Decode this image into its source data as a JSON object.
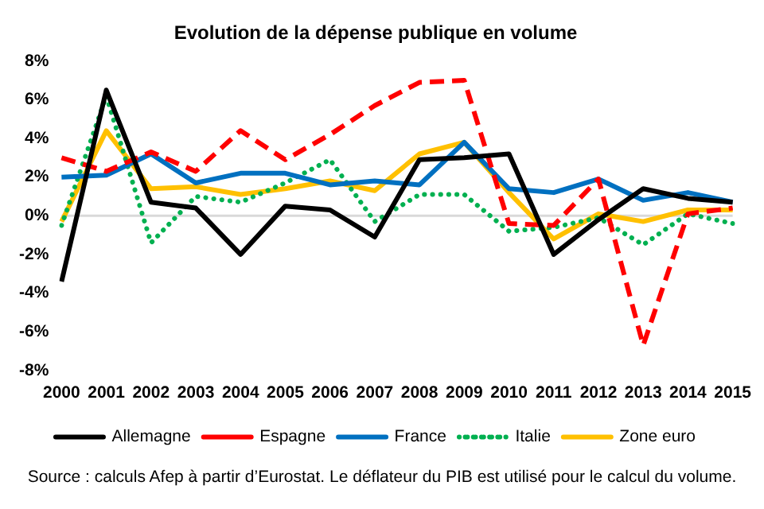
{
  "chart_data": {
    "type": "line",
    "title": "Evolution de la dépense publique en volume",
    "categories": [
      "2000",
      "2001",
      "2002",
      "2003",
      "2004",
      "2005",
      "2006",
      "2007",
      "2008",
      "2009",
      "2010",
      "2011",
      "2012",
      "2013",
      "2014",
      "2015"
    ],
    "series": [
      {
        "name": "Allemagne",
        "color": "#000000",
        "line_style": "solid",
        "values": [
          -3.4,
          6.5,
          0.7,
          0.4,
          -2.0,
          0.5,
          0.3,
          -1.1,
          2.9,
          3.0,
          3.2,
          -2.0,
          -0.2,
          1.4,
          0.9,
          0.7
        ]
      },
      {
        "name": "Espagne",
        "color": "#ff0000",
        "line_style": "dashed",
        "values": [
          3.0,
          2.3,
          3.3,
          2.3,
          4.4,
          2.9,
          4.2,
          5.7,
          6.9,
          7.0,
          -0.4,
          -0.5,
          1.9,
          -6.7,
          0.1,
          0.4
        ]
      },
      {
        "name": "France",
        "color": "#0070c0",
        "line_style": "solid",
        "values": [
          2.0,
          2.1,
          3.2,
          1.7,
          2.2,
          2.2,
          1.6,
          1.8,
          1.6,
          3.8,
          1.4,
          1.2,
          1.9,
          0.8,
          1.2,
          0.7
        ]
      },
      {
        "name": "Italie",
        "color": "#00b050",
        "line_style": "dotted",
        "values": [
          -0.5,
          6.2,
          -1.4,
          1.0,
          0.7,
          1.7,
          2.9,
          -0.3,
          1.1,
          1.1,
          -0.8,
          -0.6,
          -0.1,
          -1.5,
          0.1,
          -0.4
        ]
      },
      {
        "name": "Zone euro",
        "color": "#ffc000",
        "line_style": "solid",
        "values": [
          -0.3,
          4.4,
          1.4,
          1.5,
          1.1,
          1.4,
          1.8,
          1.3,
          3.2,
          3.8,
          1.2,
          -1.2,
          0.1,
          -0.3,
          0.3,
          0.3
        ]
      }
    ],
    "ylim": [
      -8,
      8
    ],
    "yticks": [
      {
        "value": -8,
        "label": "-8%"
      },
      {
        "value": -6,
        "label": "-6%"
      },
      {
        "value": -4,
        "label": "-4%"
      },
      {
        "value": -2,
        "label": "-2%"
      },
      {
        "value": 0,
        "label": "0%"
      },
      {
        "value": 2,
        "label": "2%"
      },
      {
        "value": 4,
        "label": "4%"
      },
      {
        "value": 6,
        "label": "6%"
      },
      {
        "value": 8,
        "label": "8%"
      }
    ],
    "grid": false,
    "ref_lines": [
      {
        "axis": "y",
        "value": 0,
        "color": "#d9d9d9"
      }
    ],
    "legend": "bottom",
    "marker": "none",
    "annotations": [
      "Source : calculs Afep à partir d’Eurostat. Le déflateur du PIB est utilisé pour le calcul du volume."
    ]
  }
}
